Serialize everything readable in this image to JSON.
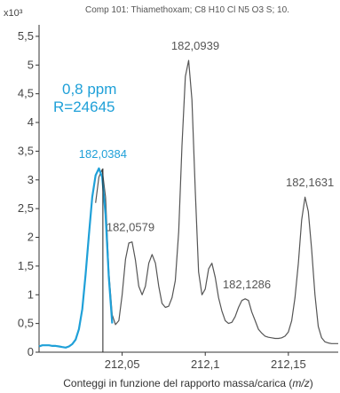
{
  "colors": {
    "measured": "#555555",
    "calculated": "#1fa0d8",
    "axis": "#333333",
    "background": "#ffffff"
  },
  "chart_data": {
    "type": "line",
    "title": "Comp 101: Thiamethoxam; C8 H10 Cl N5 O3 S; 10.",
    "xlabel_text": "Conteggi in funzione del rapporto massa/carica (",
    "xlabel_unit": "m/z",
    "xlabel_close": ")",
    "y_exponent_label": "x10³",
    "xlim": [
      212.0,
      212.18
    ],
    "ylim": [
      0,
      5.7
    ],
    "x_ticks": [
      212.05,
      212.1,
      212.15
    ],
    "x_tick_labels": [
      "212,05",
      "212,1",
      "212,15"
    ],
    "y_ticks": [
      0,
      0.5,
      1,
      1.5,
      2,
      2.5,
      3,
      3.5,
      4,
      4.5,
      5,
      5.5
    ],
    "y_tick_labels": [
      "0",
      "0,5",
      "1",
      "1,5",
      "2",
      "2,5",
      "3",
      "3,5",
      "4",
      "4,5",
      "5",
      "5,5"
    ],
    "annotation": {
      "line1": "0,8 ppm",
      "line2": "R=24645"
    },
    "marker_x": 212.0384,
    "series": [
      {
        "color": "#555555",
        "x": [
          212.034,
          212.036,
          212.038,
          212.04,
          212.042,
          212.044,
          212.046,
          212.048,
          212.05,
          212.052,
          212.054,
          212.056,
          212.058,
          212.06,
          212.062,
          212.064,
          212.066,
          212.068,
          212.07,
          212.072,
          212.074,
          212.076,
          212.078,
          212.08,
          212.082,
          212.084,
          212.086,
          212.088,
          212.09,
          212.092,
          212.094,
          212.096,
          212.098,
          212.1,
          212.102,
          212.104,
          212.106,
          212.108,
          212.11,
          212.112,
          212.114,
          212.116,
          212.118,
          212.12,
          212.122,
          212.124,
          212.126,
          212.128,
          212.13,
          212.132,
          212.134,
          212.136,
          212.138,
          212.14,
          212.142,
          212.144,
          212.146,
          212.148,
          212.15,
          212.152,
          212.154,
          212.156,
          212.158,
          212.16,
          212.162,
          212.164,
          212.166,
          212.168,
          212.17,
          212.172,
          212.174,
          212.176,
          212.178,
          212.18
        ],
        "y": [
          2.6,
          3.05,
          3.18,
          2.7,
          1.4,
          0.65,
          0.48,
          0.55,
          1.0,
          1.62,
          1.9,
          1.92,
          1.6,
          1.15,
          1.0,
          1.15,
          1.55,
          1.7,
          1.55,
          1.15,
          0.85,
          0.78,
          0.8,
          0.95,
          1.25,
          2.1,
          3.6,
          4.8,
          5.08,
          4.4,
          2.8,
          1.4,
          1.0,
          1.1,
          1.45,
          1.55,
          1.3,
          0.95,
          0.72,
          0.55,
          0.5,
          0.52,
          0.62,
          0.78,
          0.9,
          0.93,
          0.9,
          0.7,
          0.55,
          0.4,
          0.33,
          0.28,
          0.26,
          0.25,
          0.24,
          0.24,
          0.25,
          0.28,
          0.35,
          0.55,
          0.95,
          1.55,
          2.3,
          2.7,
          2.45,
          1.8,
          1.0,
          0.45,
          0.25,
          0.18,
          0.16,
          0.15,
          0.15,
          0.15
        ]
      },
      {
        "color": "#1fa0d8",
        "x": [
          212.0,
          212.002,
          212.004,
          212.006,
          212.008,
          212.01,
          212.012,
          212.014,
          212.016,
          212.018,
          212.02,
          212.022,
          212.024,
          212.026,
          212.028,
          212.03,
          212.032,
          212.034,
          212.036,
          212.038,
          212.04,
          212.042,
          212.044
        ],
        "y": [
          0.1,
          0.12,
          0.12,
          0.12,
          0.11,
          0.11,
          0.1,
          0.09,
          0.08,
          0.1,
          0.14,
          0.22,
          0.4,
          0.75,
          1.35,
          2.05,
          2.7,
          3.08,
          3.2,
          3.05,
          2.4,
          1.3,
          0.5
        ]
      }
    ],
    "peak_labels": [
      {
        "text": "182,0384",
        "x": 212.0384,
        "y": 3.2,
        "color": "#1fa0d8"
      },
      {
        "text": "182,0579",
        "x": 212.055,
        "y": 1.92,
        "color": "#555555"
      },
      {
        "text": "182,0939",
        "x": 212.094,
        "y": 5.08,
        "color": "#555555"
      },
      {
        "text": "182,1286",
        "x": 212.125,
        "y": 0.93,
        "color": "#555555"
      },
      {
        "text": "182,1631",
        "x": 212.163,
        "y": 2.7,
        "color": "#555555"
      }
    ]
  }
}
